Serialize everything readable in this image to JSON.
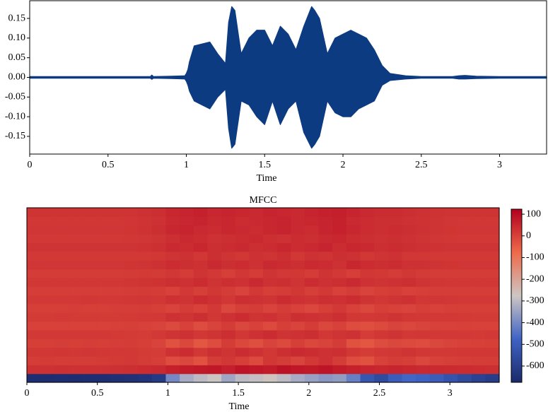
{
  "chart_data": [
    {
      "type": "area",
      "xlabel": "Time",
      "color": "#0d3b82",
      "x": [
        0,
        0.5,
        0.77,
        0.78,
        0.79,
        0.9,
        0.99,
        1.0,
        1.01,
        1.02,
        1.05,
        1.1,
        1.15,
        1.2,
        1.25,
        1.27,
        1.29,
        1.31,
        1.35,
        1.4,
        1.45,
        1.5,
        1.55,
        1.6,
        1.65,
        1.7,
        1.75,
        1.8,
        1.82,
        1.85,
        1.9,
        1.95,
        2.0,
        2.05,
        2.1,
        2.15,
        2.2,
        2.25,
        2.3,
        2.4,
        2.5,
        2.7,
        2.74,
        2.78,
        2.85,
        3.0,
        3.3
      ],
      "upper": [
        0.002,
        0.002,
        0.002,
        0.006,
        0.002,
        0.003,
        0.004,
        0.01,
        0.02,
        0.04,
        0.08,
        0.085,
        0.09,
        0.06,
        0.035,
        0.14,
        0.18,
        0.17,
        0.06,
        0.1,
        0.12,
        0.12,
        0.08,
        0.13,
        0.11,
        0.07,
        0.13,
        0.18,
        0.17,
        0.15,
        0.06,
        0.1,
        0.11,
        0.12,
        0.11,
        0.1,
        0.07,
        0.03,
        0.01,
        0.004,
        0.002,
        0.002,
        0.004,
        0.005,
        0.003,
        0.002,
        0.002
      ],
      "lower": [
        -0.002,
        -0.002,
        -0.002,
        -0.005,
        -0.002,
        -0.003,
        -0.004,
        -0.01,
        -0.02,
        -0.035,
        -0.06,
        -0.07,
        -0.08,
        -0.05,
        -0.03,
        -0.13,
        -0.18,
        -0.17,
        -0.06,
        -0.07,
        -0.1,
        -0.12,
        -0.06,
        -0.12,
        -0.08,
        -0.06,
        -0.14,
        -0.18,
        -0.17,
        -0.15,
        -0.06,
        -0.09,
        -0.1,
        -0.1,
        -0.08,
        -0.07,
        -0.06,
        -0.02,
        -0.008,
        -0.004,
        -0.002,
        -0.002,
        -0.004,
        -0.004,
        -0.003,
        -0.002,
        -0.002
      ],
      "xlim": [
        0,
        3.3
      ],
      "xticks": [
        0,
        0.5,
        1,
        1.5,
        2,
        2.5,
        3
      ],
      "ylim": [
        -0.195,
        0.195
      ],
      "yticks": [
        0.15,
        {
          "value": 0.1,
          "label": "0.10"
        },
        0.05,
        {
          "value": 0,
          "label": "0.00"
        },
        -0.05,
        {
          "value": -0.1,
          "label": "-0.10"
        },
        -0.15
      ]
    },
    {
      "type": "heatmap",
      "title": "MFCC",
      "xlabel": "Time",
      "xlim": [
        0,
        3.35
      ],
      "xticks": [
        0,
        0.5,
        1,
        1.5,
        2,
        2.5,
        3
      ],
      "zlim": [
        -675,
        123
      ],
      "zticks": [
        100,
        0,
        -100,
        -200,
        -300,
        -400,
        -500,
        -600
      ],
      "colormap": [
        "#1b2a6b",
        "#3f63c4",
        "#cdc6c3",
        "#ee6a4a",
        "#b2001f"
      ],
      "z": [
        [
          -660,
          -665,
          -660,
          -665,
          -660,
          -660,
          -655,
          -650,
          -640,
          -620,
          -400,
          -330,
          -300,
          -280,
          -340,
          -300,
          -290,
          -270,
          -300,
          -330,
          -350,
          -370,
          -360,
          -420,
          -520,
          -560,
          -500,
          -470,
          -480,
          -500,
          -530,
          -560,
          -590,
          -610
        ],
        [
          30,
          30,
          32,
          30,
          31,
          30,
          32,
          35,
          40,
          45,
          60,
          70,
          75,
          80,
          65,
          85,
          78,
          70,
          90,
          80,
          75,
          85,
          70,
          60,
          55,
          50,
          55,
          50,
          45,
          45,
          42,
          40,
          38,
          35
        ],
        [
          10,
          12,
          10,
          11,
          10,
          12,
          14,
          15,
          10,
          5,
          -20,
          -10,
          -30,
          10,
          20,
          5,
          -15,
          20,
          10,
          -5,
          15,
          30,
          10,
          -20,
          -30,
          0,
          10,
          5,
          -10,
          0,
          5,
          8,
          10,
          10
        ],
        [
          20,
          20,
          21,
          20,
          22,
          20,
          18,
          15,
          12,
          10,
          30,
          40,
          20,
          35,
          25,
          40,
          30,
          20,
          35,
          45,
          40,
          30,
          35,
          20,
          10,
          15,
          20,
          25,
          20,
          15,
          18,
          20,
          20,
          20
        ],
        [
          5,
          5,
          6,
          5,
          6,
          5,
          8,
          10,
          5,
          -5,
          -30,
          -10,
          -40,
          -20,
          10,
          -10,
          -25,
          -5,
          -15,
          5,
          -10,
          -5,
          10,
          -30,
          -40,
          -20,
          -10,
          -15,
          -20,
          -10,
          -5,
          0,
          2,
          5
        ],
        [
          15,
          15,
          16,
          15,
          16,
          15,
          14,
          12,
          10,
          15,
          25,
          30,
          20,
          25,
          35,
          20,
          30,
          40,
          25,
          30,
          35,
          20,
          25,
          30,
          10,
          20,
          25,
          15,
          20,
          18,
          15,
          15,
          14,
          15
        ],
        [
          0,
          0,
          1,
          0,
          1,
          0,
          2,
          5,
          0,
          -5,
          -15,
          0,
          -20,
          -5,
          10,
          -10,
          0,
          -15,
          5,
          -5,
          10,
          -10,
          0,
          -20,
          -25,
          -15,
          -5,
          -10,
          -5,
          0,
          0,
          2,
          0,
          0
        ],
        [
          12,
          12,
          13,
          12,
          12,
          12,
          12,
          14,
          15,
          18,
          30,
          25,
          35,
          20,
          30,
          40,
          25,
          30,
          20,
          35,
          30,
          25,
          35,
          20,
          15,
          20,
          25,
          20,
          15,
          18,
          15,
          14,
          12,
          12
        ],
        [
          5,
          5,
          5,
          6,
          5,
          5,
          6,
          8,
          10,
          5,
          -5,
          10,
          0,
          15,
          -10,
          5,
          10,
          -5,
          10,
          0,
          -10,
          5,
          15,
          0,
          -10,
          5,
          0,
          -5,
          5,
          0,
          5,
          5,
          5,
          5
        ],
        [
          18,
          18,
          18,
          18,
          19,
          18,
          18,
          20,
          22,
          20,
          30,
          25,
          40,
          30,
          20,
          35,
          30,
          25,
          40,
          30,
          25,
          35,
          30,
          40,
          25,
          20,
          25,
          30,
          20,
          22,
          20,
          18,
          18,
          18
        ],
        [
          8,
          8,
          8,
          8,
          9,
          8,
          8,
          10,
          12,
          10,
          0,
          15,
          5,
          20,
          10,
          -5,
          15,
          5,
          10,
          20,
          5,
          15,
          0,
          10,
          -5,
          5,
          10,
          0,
          5,
          8,
          8,
          8,
          8,
          8
        ],
        [
          20,
          20,
          20,
          20,
          20,
          20,
          20,
          22,
          25,
          28,
          35,
          30,
          40,
          25,
          35,
          30,
          45,
          30,
          35,
          25,
          40,
          30,
          35,
          45,
          30,
          25,
          30,
          35,
          25,
          22,
          20,
          20,
          20,
          20
        ],
        [
          10,
          10,
          10,
          10,
          10,
          10,
          10,
          12,
          14,
          12,
          20,
          10,
          25,
          15,
          5,
          20,
          10,
          25,
          15,
          20,
          10,
          25,
          15,
          5,
          20,
          15,
          10,
          20,
          12,
          10,
          10,
          10,
          10,
          10
        ],
        [
          22,
          22,
          22,
          22,
          22,
          22,
          22,
          24,
          26,
          30,
          40,
          35,
          30,
          45,
          35,
          40,
          30,
          45,
          40,
          35,
          45,
          40,
          30,
          50,
          40,
          35,
          40,
          30,
          30,
          25,
          24,
          22,
          22,
          22
        ],
        [
          15,
          15,
          15,
          15,
          15,
          15,
          15,
          16,
          18,
          20,
          25,
          30,
          20,
          35,
          25,
          20,
          30,
          25,
          35,
          20,
          30,
          25,
          35,
          30,
          20,
          25,
          30,
          20,
          20,
          18,
          16,
          15,
          15,
          15
        ],
        [
          25,
          25,
          25,
          25,
          25,
          25,
          25,
          26,
          28,
          32,
          45,
          40,
          50,
          35,
          40,
          45,
          35,
          40,
          50,
          40,
          45,
          55,
          40,
          50,
          45,
          35,
          40,
          35,
          30,
          28,
          26,
          25,
          25,
          25
        ],
        [
          18,
          18,
          18,
          18,
          18,
          18,
          18,
          20,
          22,
          25,
          35,
          45,
          40,
          30,
          35,
          40,
          45,
          35,
          30,
          40,
          35,
          45,
          50,
          40,
          35,
          30,
          35,
          30,
          25,
          22,
          20,
          18,
          18,
          18
        ],
        [
          22,
          22,
          22,
          22,
          22,
          22,
          22,
          24,
          28,
          35,
          50,
          55,
          45,
          40,
          50,
          45,
          40,
          50,
          55,
          45,
          40,
          55,
          60,
          50,
          40,
          35,
          40,
          35,
          30,
          26,
          24,
          22,
          22,
          22
        ],
        [
          20,
          20,
          20,
          20,
          20,
          20,
          20,
          22,
          26,
          30,
          45,
          50,
          55,
          45,
          50,
          40,
          45,
          50,
          55,
          45,
          50,
          55,
          60,
          45,
          40,
          35,
          35,
          30,
          28,
          25,
          22,
          20,
          20,
          20
        ],
        [
          25,
          25,
          25,
          25,
          25,
          25,
          25,
          27,
          30,
          35,
          50,
          55,
          60,
          50,
          55,
          50,
          45,
          55,
          50,
          45,
          55,
          60,
          65,
          55,
          45,
          40,
          40,
          35,
          30,
          28,
          26,
          25,
          25,
          25
        ]
      ]
    }
  ]
}
